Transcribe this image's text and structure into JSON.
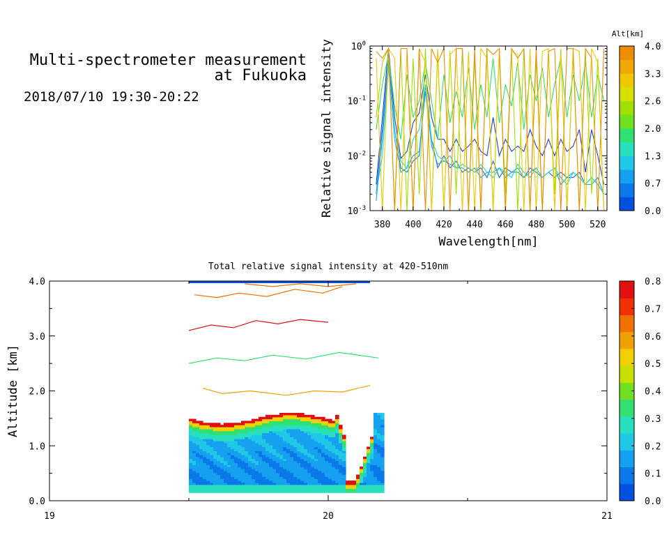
{
  "header": {
    "title_line1": "Multi-spectrometer measurement",
    "title_line2": "at Fukuoka",
    "time_range": "2018/07/10 19:30-20:22"
  },
  "chart_data": [
    {
      "type": "line",
      "xlabel": "Wavelength[nm]",
      "ylabel": "Relative signal intensity",
      "xlim": [
        372,
        526
      ],
      "x_ticks": [
        "380",
        "400",
        "420",
        "440",
        "460",
        "480",
        "500",
        "520"
      ],
      "ylim": [
        0.001,
        1
      ],
      "yscale": "log",
      "y_ticks": [
        "10-3",
        "10-2",
        "10-1",
        "100"
      ],
      "colorbar_title": "Alt[km]",
      "colorbar_ticks": [
        "0.0",
        "0.7",
        "1.3",
        "2.0",
        "2.6",
        "3.3",
        "4.0"
      ],
      "x": [
        376,
        380,
        384,
        388,
        392,
        396,
        400,
        404,
        408,
        412,
        416,
        420,
        424,
        428,
        432,
        436,
        440,
        444,
        448,
        452,
        456,
        460,
        464,
        468,
        472,
        476,
        480,
        484,
        488,
        492,
        496,
        500,
        504,
        508,
        512,
        516,
        520,
        524
      ],
      "series": [
        {
          "altitude": 0.2,
          "color": "#1f3fcf",
          "values": [
            0.003,
            0.05,
            0.9,
            0.05,
            0.009,
            0.012,
            0.04,
            0.06,
            0.3,
            0.05,
            0.02,
            0.02,
            0.012,
            0.02,
            0.012,
            0.015,
            0.02,
            0.012,
            0.01,
            0.05,
            0.01,
            0.02,
            0.012,
            0.015,
            0.012,
            0.03,
            0.015,
            0.01,
            0.02,
            0.01,
            0.02,
            0.012,
            0.015,
            0.03,
            0.005,
            0.03,
            0.01,
            0.003
          ]
        },
        {
          "altitude": 0.5,
          "color": "#1a6fe0",
          "values": [
            0.002,
            0.03,
            0.6,
            0.03,
            0.006,
            0.005,
            0.008,
            0.01,
            0.2,
            0.02,
            0.006,
            0.01,
            0.006,
            0.008,
            0.005,
            0.006,
            0.005,
            0.006,
            0.004,
            0.008,
            0.004,
            0.006,
            0.005,
            0.005,
            0.004,
            0.006,
            0.005,
            0.004,
            0.005,
            0.004,
            0.005,
            0.004,
            0.004,
            0.005,
            0.003,
            0.004,
            0.003,
            0.002
          ]
        },
        {
          "altitude": 0.9,
          "color": "#18a8e8",
          "values": [
            0.0015,
            0.02,
            0.5,
            0.02,
            0.005,
            0.006,
            0.01,
            0.012,
            0.15,
            0.015,
            0.007,
            0.008,
            0.007,
            0.006,
            0.006,
            0.005,
            0.006,
            0.004,
            0.005,
            0.005,
            0.006,
            0.004,
            0.005,
            0.006,
            0.004,
            0.005,
            0.006,
            0.004,
            0.005,
            0.006,
            0.003,
            0.004,
            0.005,
            0.004,
            0.003,
            0.003,
            0.004,
            0.002
          ]
        },
        {
          "altitude": 1.3,
          "color": "#1ed8d0",
          "values": [
            0.002,
            0.01,
            0.4,
            0.03,
            0.008,
            0.006,
            0.02,
            0.03,
            0.2,
            0.02,
            0.01,
            0.008,
            0.01,
            0.006,
            0.007,
            0.006,
            0.005,
            0.007,
            0.005,
            0.004,
            0.006,
            0.005,
            0.004,
            0.007,
            0.005,
            0.004,
            0.006,
            0.004,
            0.005,
            0.006,
            0.004,
            0.003,
            0.005,
            0.004,
            0.003,
            0.004,
            0.003,
            0.002
          ]
        },
        {
          "altitude": 2.0,
          "color": "#30e060",
          "values": [
            0.03,
            0.2,
            0.7,
            0.08,
            0.02,
            0.3,
            0.05,
            0.1,
            0.5,
            0.1,
            0.02,
            0.3,
            0.04,
            0.15,
            0.05,
            0.4,
            0.03,
            0.2,
            0.05,
            0.6,
            0.04,
            0.2,
            0.08,
            0.5,
            0.03,
            0.3,
            0.1,
            0.4,
            0.05,
            0.2,
            0.6,
            0.05,
            0.3,
            0.1,
            0.5,
            0.05,
            0.3,
            0.1
          ]
        },
        {
          "altitude": 2.6,
          "color": "#a0e000",
          "values": [
            0.05,
            0.5,
            0.9,
            0.001,
            0.8,
            0.001,
            0.6,
            0.002,
            0.9,
            0.001,
            0.7,
            0.001,
            0.8,
            0.002,
            0.9,
            0.001,
            0.6,
            0.001,
            0.9,
            0.001,
            0.7,
            0.002,
            0.8,
            0.001,
            0.9,
            0.001,
            0.6,
            0.001,
            0.8,
            0.002,
            0.9,
            0.001,
            0.7,
            0.001,
            0.8,
            0.002,
            0.6,
            0.001
          ]
        },
        {
          "altitude": 3.3,
          "color": "#f0c800",
          "values": [
            0.6,
            0.001,
            0.9,
            0.6,
            0.001,
            0.8,
            0.001,
            0.9,
            0.5,
            0.001,
            0.9,
            0.001,
            0.7,
            0.9,
            0.001,
            0.8,
            0.001,
            0.9,
            0.6,
            0.001,
            0.9,
            0.001,
            0.8,
            0.7,
            0.001,
            0.9,
            0.001,
            0.8,
            0.9,
            0.001,
            0.7,
            0.001,
            0.9,
            0.8,
            0.001,
            0.9,
            0.5,
            0.001
          ]
        },
        {
          "altitude": 3.9,
          "color": "#f08c00",
          "values": [
            0.8,
            0.6,
            0.9,
            0.001,
            0.9,
            0.9,
            0.001,
            0.9,
            0.001,
            0.9,
            0.5,
            0.9,
            0.001,
            0.9,
            0.9,
            0.001,
            0.9,
            0.001,
            0.9,
            0.7,
            0.9,
            0.001,
            0.9,
            0.6,
            0.9,
            0.001,
            0.9,
            0.001,
            0.8,
            0.9,
            0.001,
            0.9,
            0.9,
            0.001,
            0.9,
            0.6,
            0.001,
            0.9
          ]
        }
      ]
    },
    {
      "type": "heatmap",
      "title": "Total relative signal intensity at 420-510nm",
      "ylabel": "Altitude [km]",
      "xlim": [
        19,
        21
      ],
      "ylim": [
        0,
        4
      ],
      "x_ticks": [
        "19",
        "20",
        "21"
      ],
      "y_ticks": [
        "0.0",
        "1.0",
        "2.0",
        "3.0",
        "4.0"
      ],
      "data_time_range": [
        19.5,
        20.2
      ],
      "colorbar_ticks": [
        "0.0",
        "0.1",
        "0.2",
        "0.3",
        "0.4",
        "0.5",
        "0.6",
        "0.7",
        "0.8"
      ],
      "colorbar_range": [
        0,
        0.8
      ],
      "colors": [
        "#0050e0",
        "#0a78e8",
        "#16a0f0",
        "#20c8e8",
        "#28e0c0",
        "#30e070",
        "#70e020",
        "#c8e000",
        "#f0d000",
        "#f0a000",
        "#f07000",
        "#f03000",
        "#e01010"
      ]
    }
  ]
}
